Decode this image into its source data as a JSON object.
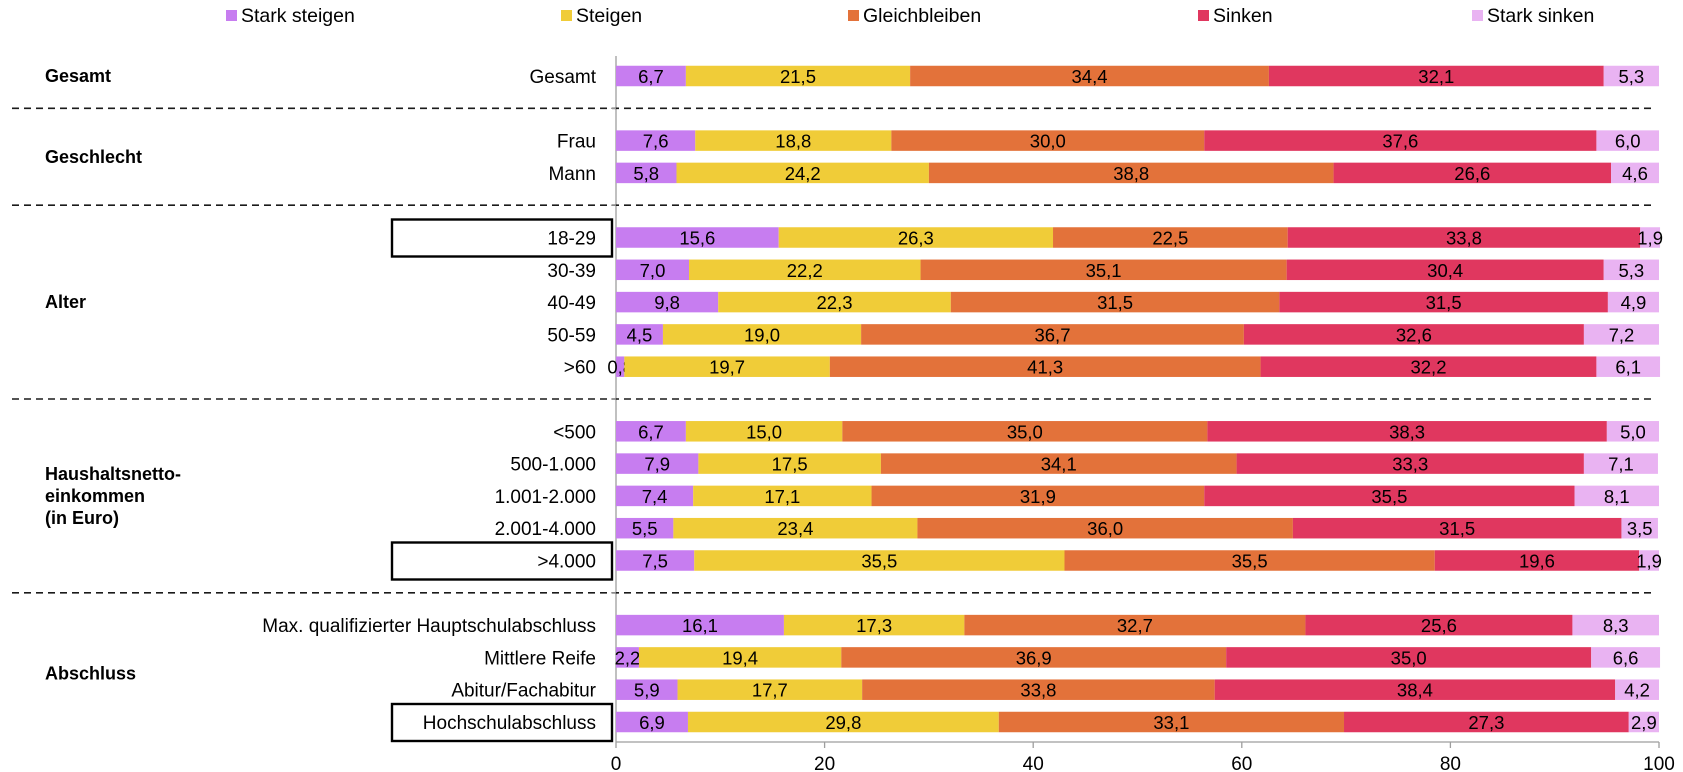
{
  "chart_data": {
    "type": "bar",
    "orientation": "horizontal",
    "stacked": true,
    "xlim": [
      0,
      100
    ],
    "x_ticks": [
      "0",
      "20",
      "40",
      "60",
      "80",
      "100"
    ],
    "legend_position": "top",
    "series": [
      {
        "name": "Stark steigen",
        "color": "#c77df0"
      },
      {
        "name": "Steigen",
        "color": "#f0cc38"
      },
      {
        "name": "Gleichbleiben",
        "color": "#e3723a"
      },
      {
        "name": "Sinken",
        "color": "#e0375f"
      },
      {
        "name": "Stark sinken",
        "color": "#e9b3f2"
      }
    ],
    "groups": [
      {
        "name": "Gesamt",
        "rows": [
          {
            "label": "Gesamt",
            "values": [
              6.7,
              21.5,
              34.4,
              32.1,
              5.3
            ],
            "labels": [
              "6,7",
              "21,5",
              "34,4",
              "32,1",
              "5,3"
            ]
          }
        ]
      },
      {
        "name": "Geschlecht",
        "rows": [
          {
            "label": "Frau",
            "values": [
              7.6,
              18.8,
              30.0,
              37.6,
              6.0
            ],
            "labels": [
              "7,6",
              "18,8",
              "30,0",
              "37,6",
              "6,0"
            ]
          },
          {
            "label": "Mann",
            "values": [
              5.8,
              24.2,
              38.8,
              26.6,
              4.6
            ],
            "labels": [
              "5,8",
              "24,2",
              "38,8",
              "26,6",
              "4,6"
            ]
          }
        ]
      },
      {
        "name": "Alter",
        "rows": [
          {
            "label": "18-29",
            "boxed": true,
            "values": [
              15.6,
              26.3,
              22.5,
              33.8,
              1.9
            ],
            "labels": [
              "15,6",
              "26,3",
              "22,5",
              "33,8",
              "1,9"
            ]
          },
          {
            "label": "30-39",
            "values": [
              7.0,
              22.2,
              35.1,
              30.4,
              5.3
            ],
            "labels": [
              "7,0",
              "22,2",
              "35,1",
              "30,4",
              "5,3"
            ]
          },
          {
            "label": "40-49",
            "values": [
              9.8,
              22.3,
              31.5,
              31.5,
              4.9
            ],
            "labels": [
              "9,8",
              "22,3",
              "31,5",
              "31,5",
              "4,9"
            ]
          },
          {
            "label": "50-59",
            "values": [
              4.5,
              19.0,
              36.7,
              32.6,
              7.2
            ],
            "labels": [
              "4,5",
              "19,0",
              "36,7",
              "32,6",
              "7,2"
            ]
          },
          {
            "label": ">60",
            "values": [
              0.8,
              19.7,
              41.3,
              32.2,
              6.1
            ],
            "labels": [
              "0,8",
              "19,7",
              "41,3",
              "32,2",
              "6,1"
            ]
          }
        ]
      },
      {
        "name": "Haushaltsnetto-\neinkommen\n(in Euro)",
        "rows": [
          {
            "label": "<500",
            "values": [
              6.7,
              15.0,
              35.0,
              38.3,
              5.0
            ],
            "labels": [
              "6,7",
              "15,0",
              "35,0",
              "38,3",
              "5,0"
            ]
          },
          {
            "label": "500-1.000",
            "values": [
              7.9,
              17.5,
              34.1,
              33.3,
              7.1
            ],
            "labels": [
              "7,9",
              "17,5",
              "34,1",
              "33,3",
              "7,1"
            ]
          },
          {
            "label": "1.001-2.000",
            "values": [
              7.4,
              17.1,
              31.9,
              35.5,
              8.1
            ],
            "labels": [
              "7,4",
              "17,1",
              "31,9",
              "35,5",
              "8,1"
            ]
          },
          {
            "label": "2.001-4.000",
            "values": [
              5.5,
              23.4,
              36.0,
              31.5,
              3.5
            ],
            "labels": [
              "5,5",
              "23,4",
              "36,0",
              "31,5",
              "3,5"
            ]
          },
          {
            "label": ">4.000",
            "boxed": true,
            "values": [
              7.5,
              35.5,
              35.5,
              19.6,
              1.9
            ],
            "labels": [
              "7,5",
              "35,5",
              "35,5",
              "19,6",
              "1,9"
            ]
          }
        ]
      },
      {
        "name": "Abschluss",
        "rows": [
          {
            "label": "Max. qualifizierter Hauptschulabschluss",
            "values": [
              16.1,
              17.3,
              32.7,
              25.6,
              8.3
            ],
            "labels": [
              "16,1",
              "17,3",
              "32,7",
              "25,6",
              "8,3"
            ]
          },
          {
            "label": "Mittlere Reife",
            "values": [
              2.2,
              19.4,
              36.9,
              35.0,
              6.6
            ],
            "labels": [
              "2,2",
              "19,4",
              "36,9",
              "35,0",
              "6,6"
            ]
          },
          {
            "label": "Abitur/Fachabitur",
            "values": [
              5.9,
              17.7,
              33.8,
              38.4,
              4.2
            ],
            "labels": [
              "5,9",
              "17,7",
              "33,8",
              "38,4",
              "4,2"
            ]
          },
          {
            "label": "Hochschulabschluss",
            "boxed": true,
            "values": [
              6.9,
              29.8,
              33.1,
              27.3,
              2.9
            ],
            "labels": [
              "6,9",
              "29,8",
              "33,1",
              "27,3",
              "2,9"
            ]
          }
        ]
      }
    ]
  }
}
